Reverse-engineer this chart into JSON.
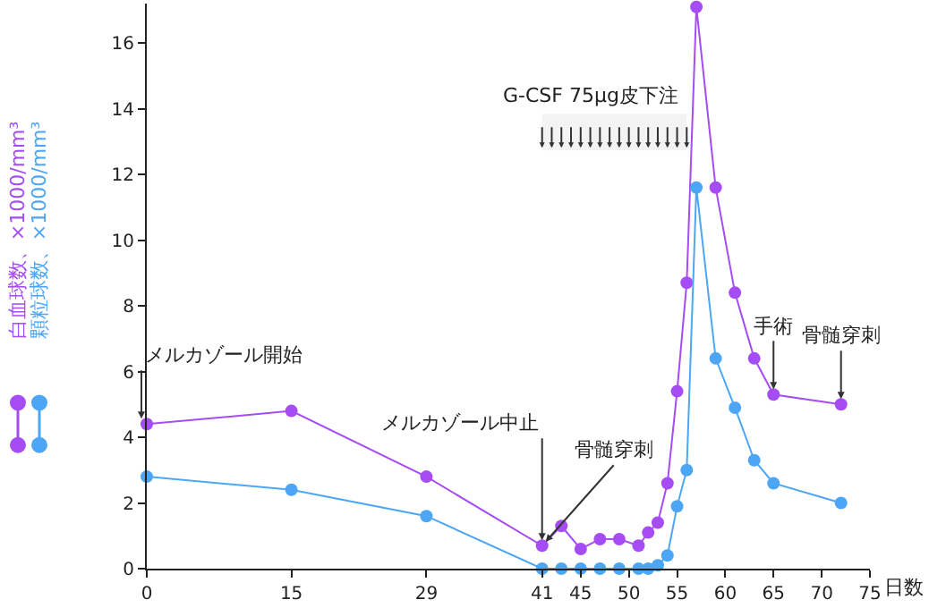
{
  "chart_data": {
    "type": "line",
    "xlabel": "日数",
    "legend": "left",
    "marker": "circle",
    "grid": false,
    "x": [
      0,
      15,
      29,
      41,
      43,
      45,
      47,
      49,
      51,
      52,
      53,
      54,
      55,
      56,
      57,
      59,
      61,
      63,
      65,
      72
    ],
    "series": [
      {
        "name": "白血球数、×1000/mm³",
        "color": "#a64cf4",
        "values": [
          4.4,
          4.8,
          2.8,
          0.7,
          1.3,
          0.6,
          0.9,
          0.9,
          0.7,
          1.1,
          1.4,
          2.6,
          5.4,
          8.7,
          17.1,
          11.6,
          8.4,
          6.4,
          5.3,
          5.0
        ]
      },
      {
        "name": "顆粒球数、×1000/mm³",
        "color": "#4da6f5",
        "values": [
          2.8,
          2.4,
          1.6,
          0,
          0,
          0,
          0,
          0,
          0,
          0,
          0.1,
          0.4,
          1.9,
          3.0,
          11.6,
          6.4,
          4.9,
          3.3,
          2.6,
          2.0
        ]
      }
    ],
    "xlim": [
      0,
      75
    ],
    "xticks": [
      0,
      15,
      29,
      41,
      45,
      50,
      55,
      60,
      65,
      70,
      75
    ],
    "ylim": [
      0,
      17.2
    ],
    "yticks": [
      0,
      2,
      4,
      6,
      8,
      10,
      12,
      14,
      16
    ],
    "bands": [
      {
        "axis": "x",
        "from": 41,
        "to": 56,
        "label": "G-CSF 75μg皮下注",
        "color": "#f3f3f3"
      }
    ],
    "annotations": [
      {
        "text": "メルカゾール開始",
        "x": 0,
        "y": 4.4
      },
      {
        "text": "メルカゾール中止",
        "x": 41,
        "y": 0.7
      },
      {
        "text": "骨髄穿刺",
        "x": 41,
        "y": 0.7
      },
      {
        "text": "手術",
        "x": 65,
        "y": 5.3
      },
      {
        "text": "骨髄穿刺",
        "x": 72,
        "y": 5.0
      }
    ]
  }
}
